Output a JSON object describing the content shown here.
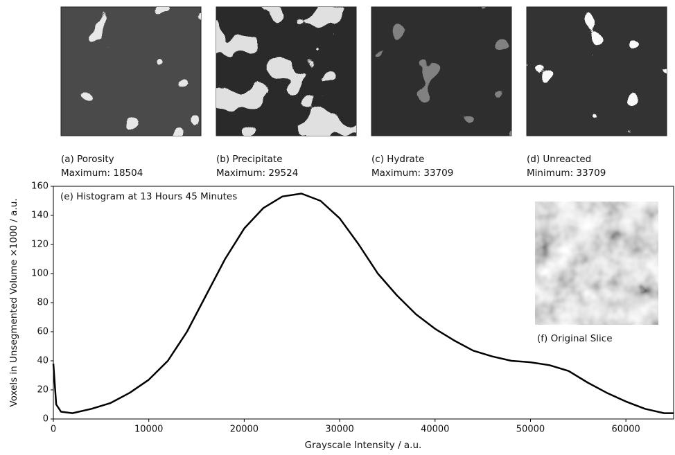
{
  "panels": [
    {
      "caption": "(a) Porosity",
      "stat": "Maximum: 18504"
    },
    {
      "caption": "(b) Precipitate",
      "stat": "Maximum: 29524"
    },
    {
      "caption": "(c) Hydrate",
      "stat": "Maximum: 33709"
    },
    {
      "caption": "(d) Unreacted",
      "stat": "Minimum: 33709"
    }
  ],
  "inset_caption": "(f) Original Slice",
  "chart_data": {
    "type": "line",
    "annotation": "(e) Histogram at 13 Hours 45 Minutes",
    "x_label": "Grayscale Intensity / a.u.",
    "y_label": "Voxels in Unsegmented Volume ×1000 / a.u.",
    "x": [
      0,
      300,
      800,
      2000,
      4000,
      6000,
      8000,
      10000,
      12000,
      14000,
      16000,
      18000,
      20000,
      22000,
      24000,
      26000,
      28000,
      30000,
      32000,
      34000,
      36000,
      38000,
      40000,
      42000,
      44000,
      46000,
      48000,
      50000,
      52000,
      54000,
      56000,
      58000,
      60000,
      62000,
      64000,
      65000
    ],
    "values": [
      38,
      10,
      5,
      4,
      7,
      11,
      18,
      27,
      40,
      60,
      85,
      110,
      131,
      145,
      153,
      155,
      150,
      138,
      120,
      100,
      85,
      72,
      62,
      54,
      47,
      43,
      40,
      39,
      37,
      33,
      25,
      18,
      12,
      7,
      4,
      4
    ],
    "color": "#000000",
    "xlim": [
      0,
      65000
    ],
    "xticks": [
      0,
      10000,
      20000,
      30000,
      40000,
      50000,
      60000
    ],
    "ylim": [
      0,
      160
    ],
    "yticks": [
      0,
      20,
      40,
      60,
      80,
      100,
      120,
      140,
      160
    ]
  }
}
